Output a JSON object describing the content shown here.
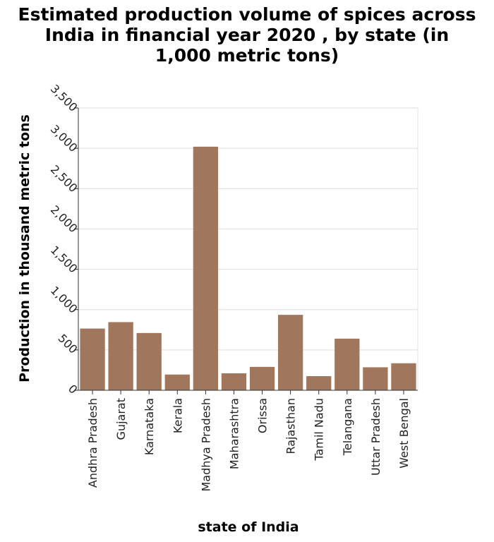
{
  "chart_data": {
    "type": "bar",
    "title_lines": [
      "Estimated production volume of spices across",
      "India in financial year 2020 , by state (in",
      "1,000 metric tons)"
    ],
    "xlabel": "state of India",
    "ylabel": "Production in thousand metric tons",
    "categories": [
      "Andhra Pradesh",
      "Gujarat",
      "Karnataka",
      "Kerala",
      "Madhya Pradesh",
      "Maharashtra",
      "Orissa",
      "Rajasthan",
      "Tamil Nadu",
      "Telangana",
      "Uttar Pradesh",
      "West Bengal"
    ],
    "values": [
      765,
      845,
      710,
      195,
      3020,
      210,
      290,
      935,
      175,
      640,
      285,
      335
    ],
    "ylim": [
      0,
      3500
    ],
    "yticks": [
      0,
      500,
      1000,
      1500,
      2000,
      2500,
      3000,
      3500
    ],
    "ytick_labels": [
      "0",
      "500",
      "1,000",
      "1,500",
      "2,000",
      "2,500",
      "3,000",
      "3,500"
    ],
    "grid": true,
    "legend": "none",
    "bar_color": "#a0765d"
  }
}
